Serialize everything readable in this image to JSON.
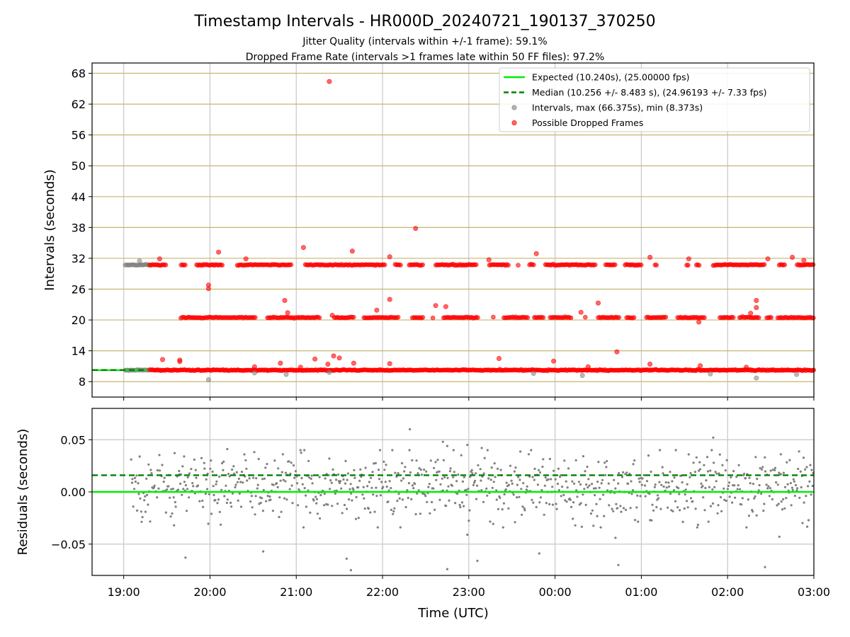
{
  "title": "Timestamp Intervals - HR000D_20240721_190137_370250",
  "subtitle_1": "Jitter Quality (intervals within +/-1 frame): 59.1%",
  "subtitle_2": "Dropped Frame Rate (intervals >1 frames late within 50 FF files): 97.2%",
  "chart_data": [
    {
      "type": "scatter",
      "panel": "intervals",
      "xlabel": "",
      "ylabel": "Intervals (seconds)",
      "x_range_hours_utc": [
        "18:38",
        "03:00"
      ],
      "ylim": [
        5,
        70
      ],
      "yticks": [
        8,
        14,
        20,
        26,
        32,
        38,
        44,
        50,
        56,
        62,
        68
      ],
      "ytick_labels": [
        "8",
        "14",
        "20",
        "26",
        "32",
        "38",
        "44",
        "50",
        "56",
        "62",
        "68"
      ],
      "grid": "on",
      "grid_color_y": "#c8b46e",
      "legend_position": "top-right",
      "legend": [
        {
          "label": "Expected (10.240s), (25.00000 fps)",
          "style": "solid-line",
          "color": "#00ee00"
        },
        {
          "label": "Median (10.256 +/- 8.483 s), (24.96193 +/- 7.33 fps)",
          "style": "dashed-line",
          "color": "#008000"
        },
        {
          "label": "Intervals, max (66.375s), min (8.373s)",
          "style": "marker",
          "color": "#808080"
        },
        {
          "label": "Possible Dropped Frames",
          "style": "marker",
          "color": "#ff0000"
        }
      ],
      "series": [
        {
          "name": "Expected (10.240s), (25.00000 fps)",
          "kind": "hline",
          "y": 10.24,
          "x_range": [
            "18:38",
            "19:16"
          ],
          "color": "#00ee00"
        },
        {
          "name": "Median (10.256 +/- 8.483 s), (24.96193 +/- 7.33 fps)",
          "kind": "hline",
          "y": 10.256,
          "x_range": [
            "18:38",
            "19:16"
          ],
          "color": "#008000"
        },
        {
          "name": "Intervals, max (66.375s), min (8.373s)",
          "color": "#808080",
          "bands": [
            {
              "x_start": "19:01",
              "x_end": "19:17",
              "y": 10.24
            },
            {
              "x_start": "19:01",
              "x_end": "19:18",
              "y": 30.72
            }
          ],
          "points": [
            {
              "x": "19:11",
              "y": 31.5
            },
            {
              "x": "19:59",
              "y": 8.37
            },
            {
              "x": "20:31",
              "y": 9.7
            },
            {
              "x": "20:53",
              "y": 9.4
            },
            {
              "x": "21:23",
              "y": 9.8
            },
            {
              "x": "23:45",
              "y": 9.6
            },
            {
              "x": "00:19",
              "y": 9.2
            },
            {
              "x": "01:48",
              "y": 9.5
            },
            {
              "x": "02:20",
              "y": 8.7
            },
            {
              "x": "02:48",
              "y": 9.4
            }
          ]
        },
        {
          "name": "Possible Dropped Frames",
          "color": "#ff0000",
          "bands": [
            {
              "x_start": "19:18",
              "x_end": "03:00",
              "y": 10.24
            },
            {
              "x_start": "19:24",
              "x_end": "03:00",
              "y": 20.48
            },
            {
              "x_start": "19:18",
              "x_end": "03:00",
              "y": 30.72
            }
          ],
          "points": [
            {
              "x": "21:23",
              "y": 66.4
            },
            {
              "x": "22:23",
              "y": 37.8
            },
            {
              "x": "21:05",
              "y": 34.1
            },
            {
              "x": "20:06",
              "y": 33.2
            },
            {
              "x": "21:39",
              "y": 33.4
            },
            {
              "x": "23:47",
              "y": 32.9
            },
            {
              "x": "22:05",
              "y": 32.3
            },
            {
              "x": "01:06",
              "y": 32.2
            },
            {
              "x": "19:25",
              "y": 31.9
            },
            {
              "x": "20:25",
              "y": 31.9
            },
            {
              "x": "23:14",
              "y": 31.7
            },
            {
              "x": "01:33",
              "y": 31.9
            },
            {
              "x": "02:28",
              "y": 31.9
            },
            {
              "x": "02:45",
              "y": 32.2
            },
            {
              "x": "02:53",
              "y": 31.6
            },
            {
              "x": "19:59",
              "y": 26.8
            },
            {
              "x": "19:59",
              "y": 26.1
            },
            {
              "x": "20:52",
              "y": 23.8
            },
            {
              "x": "22:05",
              "y": 24.0
            },
            {
              "x": "00:30",
              "y": 23.3
            },
            {
              "x": "02:20",
              "y": 23.8
            },
            {
              "x": "02:20",
              "y": 22.4
            },
            {
              "x": "22:37",
              "y": 22.8
            },
            {
              "x": "22:44",
              "y": 22.6
            },
            {
              "x": "21:56",
              "y": 21.9
            },
            {
              "x": "20:54",
              "y": 21.4
            },
            {
              "x": "00:18",
              "y": 21.5
            },
            {
              "x": "02:16",
              "y": 21.3
            },
            {
              "x": "21:25",
              "y": 20.9
            },
            {
              "x": "01:40",
              "y": 19.6
            },
            {
              "x": "00:43",
              "y": 13.8
            },
            {
              "x": "21:26",
              "y": 13.0
            },
            {
              "x": "21:30",
              "y": 12.6
            },
            {
              "x": "21:13",
              "y": 12.4
            },
            {
              "x": "23:21",
              "y": 12.5
            },
            {
              "x": "19:27",
              "y": 12.3
            },
            {
              "x": "19:39",
              "y": 12.2
            },
            {
              "x": "19:39",
              "y": 11.9
            },
            {
              "x": "23:59",
              "y": 12.0
            },
            {
              "x": "20:49",
              "y": 11.6
            },
            {
              "x": "21:40",
              "y": 11.6
            },
            {
              "x": "22:05",
              "y": 11.5
            },
            {
              "x": "01:06",
              "y": 11.4
            },
            {
              "x": "21:22",
              "y": 11.4
            },
            {
              "x": "20:31",
              "y": 10.9
            },
            {
              "x": "21:03",
              "y": 10.8
            },
            {
              "x": "00:23",
              "y": 10.9
            },
            {
              "x": "01:41",
              "y": 11.1
            },
            {
              "x": "02:13",
              "y": 10.8
            }
          ]
        }
      ]
    },
    {
      "type": "scatter",
      "panel": "residuals",
      "xlabel": "Time (UTC)",
      "ylabel": "Residuals (seconds)",
      "x_range_hours_utc": [
        "18:38",
        "03:00"
      ],
      "xticks": [
        "19:00",
        "20:00",
        "21:00",
        "22:00",
        "23:00",
        "00:00",
        "01:00",
        "02:00",
        "03:00"
      ],
      "ylim": [
        -0.08,
        0.08
      ],
      "yticks": [
        -0.05,
        0.0,
        0.05
      ],
      "ytick_labels": [
        "−0.05",
        "0.00",
        "0.05"
      ],
      "grid": "on",
      "series": [
        {
          "name": "Expected",
          "kind": "hline",
          "y": 0.0,
          "color": "#00ee00"
        },
        {
          "name": "Median",
          "kind": "hline",
          "y": 0.016,
          "color": "#008000"
        },
        {
          "name": "Residuals",
          "color": "#808080",
          "distribution": {
            "x_start": "19:05",
            "x_end": "03:00",
            "center": 0.005,
            "spread": 0.015,
            "count": 900
          },
          "outliers": [
            {
              "x": "19:43",
              "y": -0.063
            },
            {
              "x": "19:35",
              "y": -0.032
            },
            {
              "x": "20:37",
              "y": -0.057
            },
            {
              "x": "21:35",
              "y": -0.064
            },
            {
              "x": "21:38",
              "y": -0.075
            },
            {
              "x": "22:45",
              "y": -0.074
            },
            {
              "x": "22:59",
              "y": -0.041
            },
            {
              "x": "23:06",
              "y": -0.066
            },
            {
              "x": "23:49",
              "y": -0.059
            },
            {
              "x": "00:44",
              "y": -0.07
            },
            {
              "x": "00:42",
              "y": -0.044
            },
            {
              "x": "02:26",
              "y": -0.072
            },
            {
              "x": "02:36",
              "y": -0.043
            },
            {
              "x": "22:19",
              "y": 0.06
            },
            {
              "x": "22:42",
              "y": 0.048
            },
            {
              "x": "22:45",
              "y": 0.044
            },
            {
              "x": "22:59",
              "y": 0.045
            },
            {
              "x": "23:09",
              "y": 0.042
            },
            {
              "x": "01:50",
              "y": 0.052
            },
            {
              "x": "20:12",
              "y": 0.041
            },
            {
              "x": "19:42",
              "y": 0.034
            },
            {
              "x": "02:37",
              "y": 0.036
            }
          ]
        }
      ]
    }
  ]
}
